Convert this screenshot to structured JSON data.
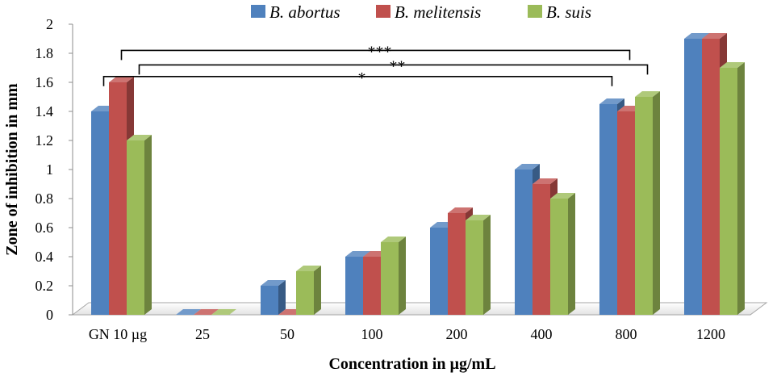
{
  "chart_data": {
    "type": "bar",
    "title": "",
    "xlabel": "Concentration in µg/mL",
    "ylabel": "Zone of inhibition in mm",
    "categories": [
      "GN 10 µg",
      "25",
      "50",
      "100",
      "200",
      "400",
      "800",
      "1200"
    ],
    "series": [
      {
        "name": "B. abortus",
        "color": "#4f81bd",
        "values": [
          1.4,
          0,
          0.2,
          0.4,
          0.6,
          1.0,
          1.45,
          1.9
        ]
      },
      {
        "name": "B. melitensis",
        "color": "#c0504d",
        "values": [
          1.6,
          0,
          0,
          0.4,
          0.7,
          0.9,
          1.4,
          1.9
        ]
      },
      {
        "name": "B. suis",
        "color": "#9bbb59",
        "values": [
          1.2,
          0,
          0.3,
          0.5,
          0.65,
          0.8,
          1.5,
          1.7
        ]
      }
    ],
    "ylim": [
      0,
      2
    ],
    "yticks": [
      0,
      0.2,
      0.4,
      0.6,
      0.8,
      1,
      1.2,
      1.4,
      1.6,
      1.8,
      2
    ],
    "ytick_labels": [
      "0",
      "0.2",
      "0.4",
      "0.6",
      "0.8",
      "1",
      "1.2",
      "1.4",
      "1.6",
      "1.8",
      "2"
    ],
    "legend_position": "top",
    "grid": false,
    "annotations": [
      {
        "text": "***",
        "from_category": "GN 10 µg",
        "from_series": "B. melitensis",
        "to_category": "800",
        "to_series": "B. melitensis"
      },
      {
        "text": "**",
        "from_category": "GN 10 µg",
        "from_series": "B. suis",
        "to_category": "800",
        "to_series": "B. suis"
      },
      {
        "text": "*",
        "from_category": "GN 10 µg",
        "from_series": "B. abortus",
        "to_category": "800",
        "to_series": "B. abortus"
      }
    ]
  }
}
